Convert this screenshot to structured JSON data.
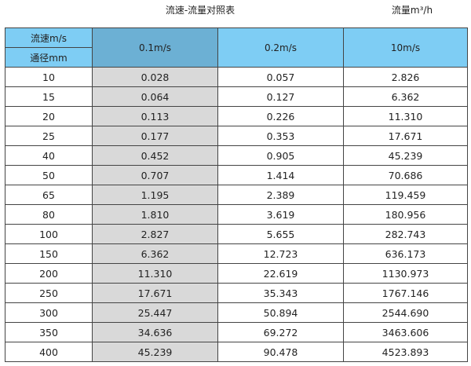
{
  "title": "流速-流量对照表",
  "unit": "流量m³/h",
  "header": {
    "velocity_label": "流速m/s",
    "diameter_label": "通径mm",
    "columns": [
      "0.1m/s",
      "0.2m/s",
      "10m/s"
    ]
  },
  "highlight_colors": {
    "header": "#7ecdf4",
    "selected_header": "#6cb0d4",
    "selected_column": "#d9d9d9"
  },
  "rows": [
    [
      "10",
      "0.028",
      "0.057",
      "2.826"
    ],
    [
      "15",
      "0.064",
      "0.127",
      "6.362"
    ],
    [
      "20",
      "0.113",
      "0.226",
      "11.310"
    ],
    [
      "25",
      "0.177",
      "0.353",
      "17.671"
    ],
    [
      "40",
      "0.452",
      "0.905",
      "45.239"
    ],
    [
      "50",
      "0.707",
      "1.414",
      "70.686"
    ],
    [
      "65",
      "1.195",
      "2.389",
      "119.459"
    ],
    [
      "80",
      "1.810",
      "3.619",
      "180.956"
    ],
    [
      "100",
      "2.827",
      "5.655",
      "282.743"
    ],
    [
      "150",
      "6.362",
      "12.723",
      "636.173"
    ],
    [
      "200",
      "11.310",
      "22.619",
      "1130.973"
    ],
    [
      "250",
      "17.671",
      "35.343",
      "1767.146"
    ],
    [
      "300",
      "25.447",
      "50.894",
      "2544.690"
    ],
    [
      "350",
      "34.636",
      "69.272",
      "3463.606"
    ],
    [
      "400",
      "45.239",
      "90.478",
      "4523.893"
    ]
  ]
}
